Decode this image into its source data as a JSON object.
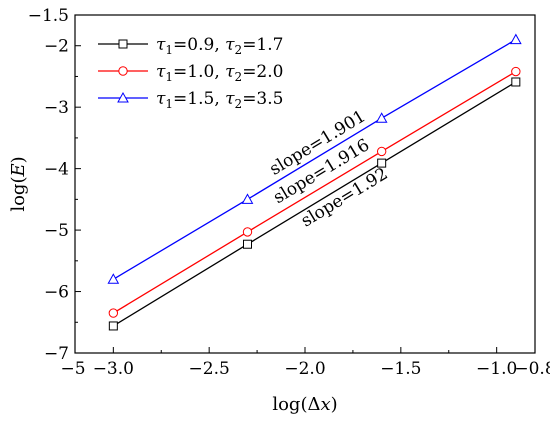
{
  "chart_data": {
    "type": "line",
    "title": "",
    "xlabel": "log(Δx)",
    "ylabel": "log(E)",
    "xlim": [
      -3.0,
      -0.8
    ],
    "ylim": [
      -7.0,
      -1.5
    ],
    "x_ticks": [
      {
        "value": -3.0,
        "label": "−3.0"
      },
      {
        "value": -2.5,
        "label": "−2.5"
      },
      {
        "value": -2.0,
        "label": "−2.0"
      },
      {
        "value": -1.5,
        "label": "−1.5"
      },
      {
        "value": -1.0,
        "label": "−1.0"
      },
      {
        "value": -0.8,
        "label": "−0.8"
      }
    ],
    "x_edge_label": "−5",
    "y_ticks": [
      {
        "value": -1.5,
        "label": "−1.5"
      },
      {
        "value": -2,
        "label": "−2"
      },
      {
        "value": -3,
        "label": "−3"
      },
      {
        "value": -4,
        "label": "−4"
      },
      {
        "value": -5,
        "label": "−5"
      },
      {
        "value": -6,
        "label": "−6"
      },
      {
        "value": -7,
        "label": "−7"
      }
    ],
    "grid": false,
    "legend_position": "top-left",
    "x": [
      -3.0,
      -2.3,
      -1.6,
      -0.9
    ],
    "series": [
      {
        "name": "τ1=0.9, τ2=1.7",
        "tau1": "=0.9, ",
        "tau2": "=1.7",
        "color": "#000000",
        "marker": "square",
        "values": [
          -6.56,
          -5.23,
          -3.91,
          -2.59
        ]
      },
      {
        "name": "τ1=1.0, τ2=2.0",
        "tau1": "=1.0, ",
        "tau2": "=2.0",
        "color": "#ff0000",
        "marker": "circle",
        "values": [
          -6.35,
          -5.03,
          -3.72,
          -2.42
        ]
      },
      {
        "name": "τ1=1.5, τ2=3.5",
        "tau1": "=1.5, ",
        "tau2": "=3.5",
        "color": "#0000ff",
        "marker": "triangle",
        "values": [
          -5.8,
          -4.5,
          -3.18,
          -1.9
        ]
      }
    ],
    "annotations": [
      {
        "text": "slope=1.901",
        "series": 2
      },
      {
        "text": "slope=1.916",
        "series": 1
      },
      {
        "text": "slope=1.92",
        "series": 0
      }
    ]
  }
}
